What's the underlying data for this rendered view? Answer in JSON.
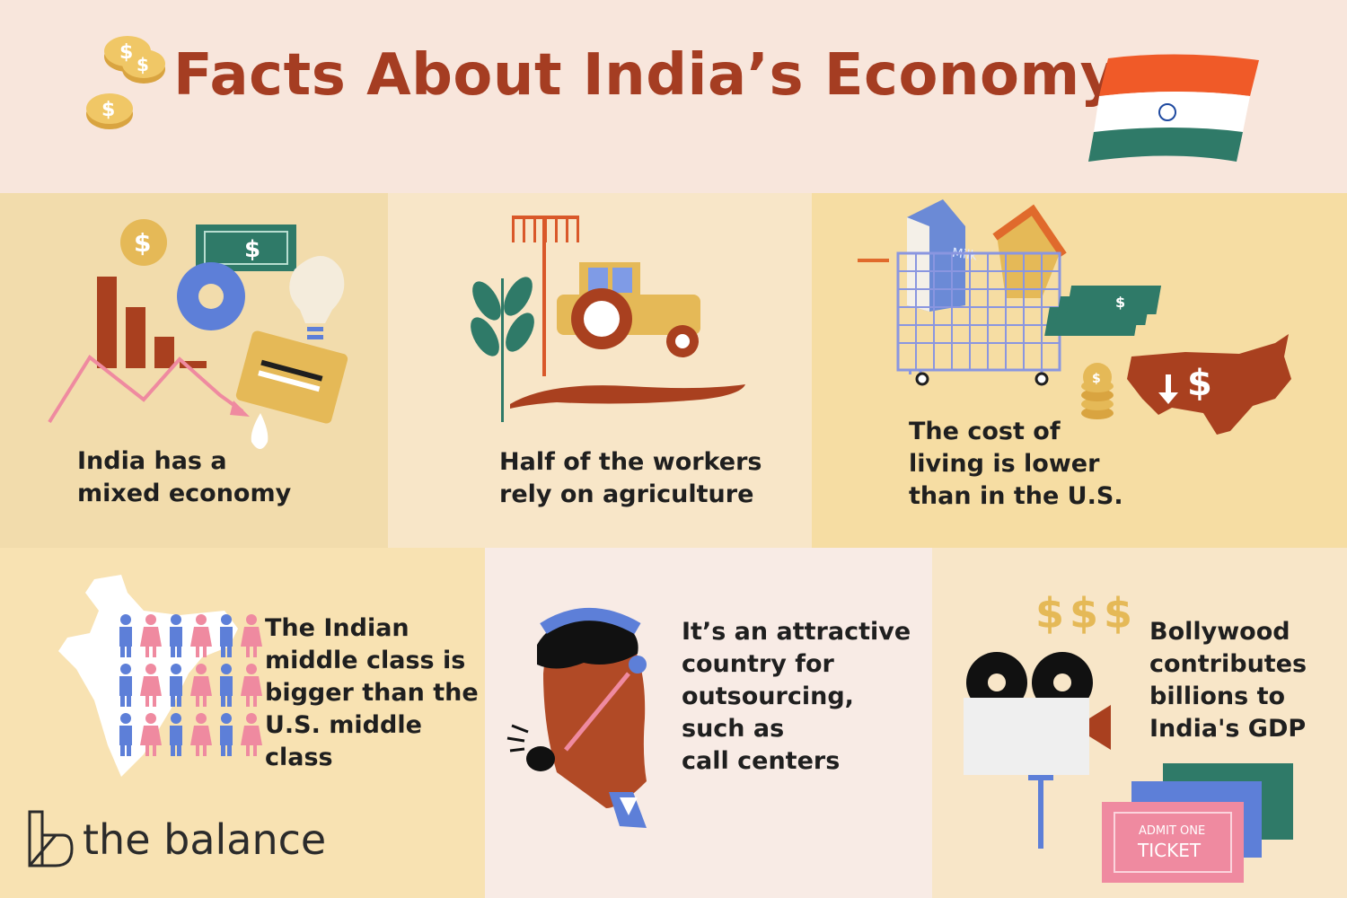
{
  "header": {
    "title": "Facts About India’s Economy",
    "coins_icon": "dollar-coins",
    "flag_icon": "india-flag"
  },
  "facts": [
    {
      "id": "mixed-economy",
      "lines": [
        "India has a",
        "mixed economy"
      ],
      "icon": "economy-collage",
      "bg": "#f2dcac"
    },
    {
      "id": "agriculture",
      "lines": [
        "Half of the workers",
        "rely on agriculture"
      ],
      "icon": "tractor",
      "bg": "#f8e6c8"
    },
    {
      "id": "cost-of-living",
      "lines": [
        "The cost of",
        "living is lower",
        "than in the U.S."
      ],
      "icon": "shopping-cart",
      "bg": "#f6dda3"
    },
    {
      "id": "middle-class",
      "lines": [
        "The Indian",
        "middle class is",
        "bigger than the",
        "U.S. middle",
        "class"
      ],
      "icon": "india-map-people",
      "bg": "#f8e2b2"
    },
    {
      "id": "outsourcing",
      "lines": [
        "It’s an attractive",
        "country for",
        "outsourcing,",
        "such as",
        "call centers"
      ],
      "icon": "call-center-agent",
      "bg": "#f8ebe5"
    },
    {
      "id": "bollywood",
      "lines": [
        "Bollywood",
        "contributes",
        "billions to",
        "India's GDP"
      ],
      "icon": "movie-camera",
      "bg": "#f8e6c8"
    }
  ],
  "illustration_text": {
    "dollar": "$",
    "dollars": "$$$",
    "milk": "Milk",
    "admit_one": "ADMIT ONE",
    "ticket": "TICKET"
  },
  "brand": {
    "name": "the balance"
  },
  "colors": {
    "title": "#a53d22",
    "text": "#1f1f1f",
    "rust": "#a9401f",
    "pink": "#ef8aa0",
    "blue": "#5d7fd8",
    "green": "#2f7a68",
    "gold": "#e5b957"
  }
}
